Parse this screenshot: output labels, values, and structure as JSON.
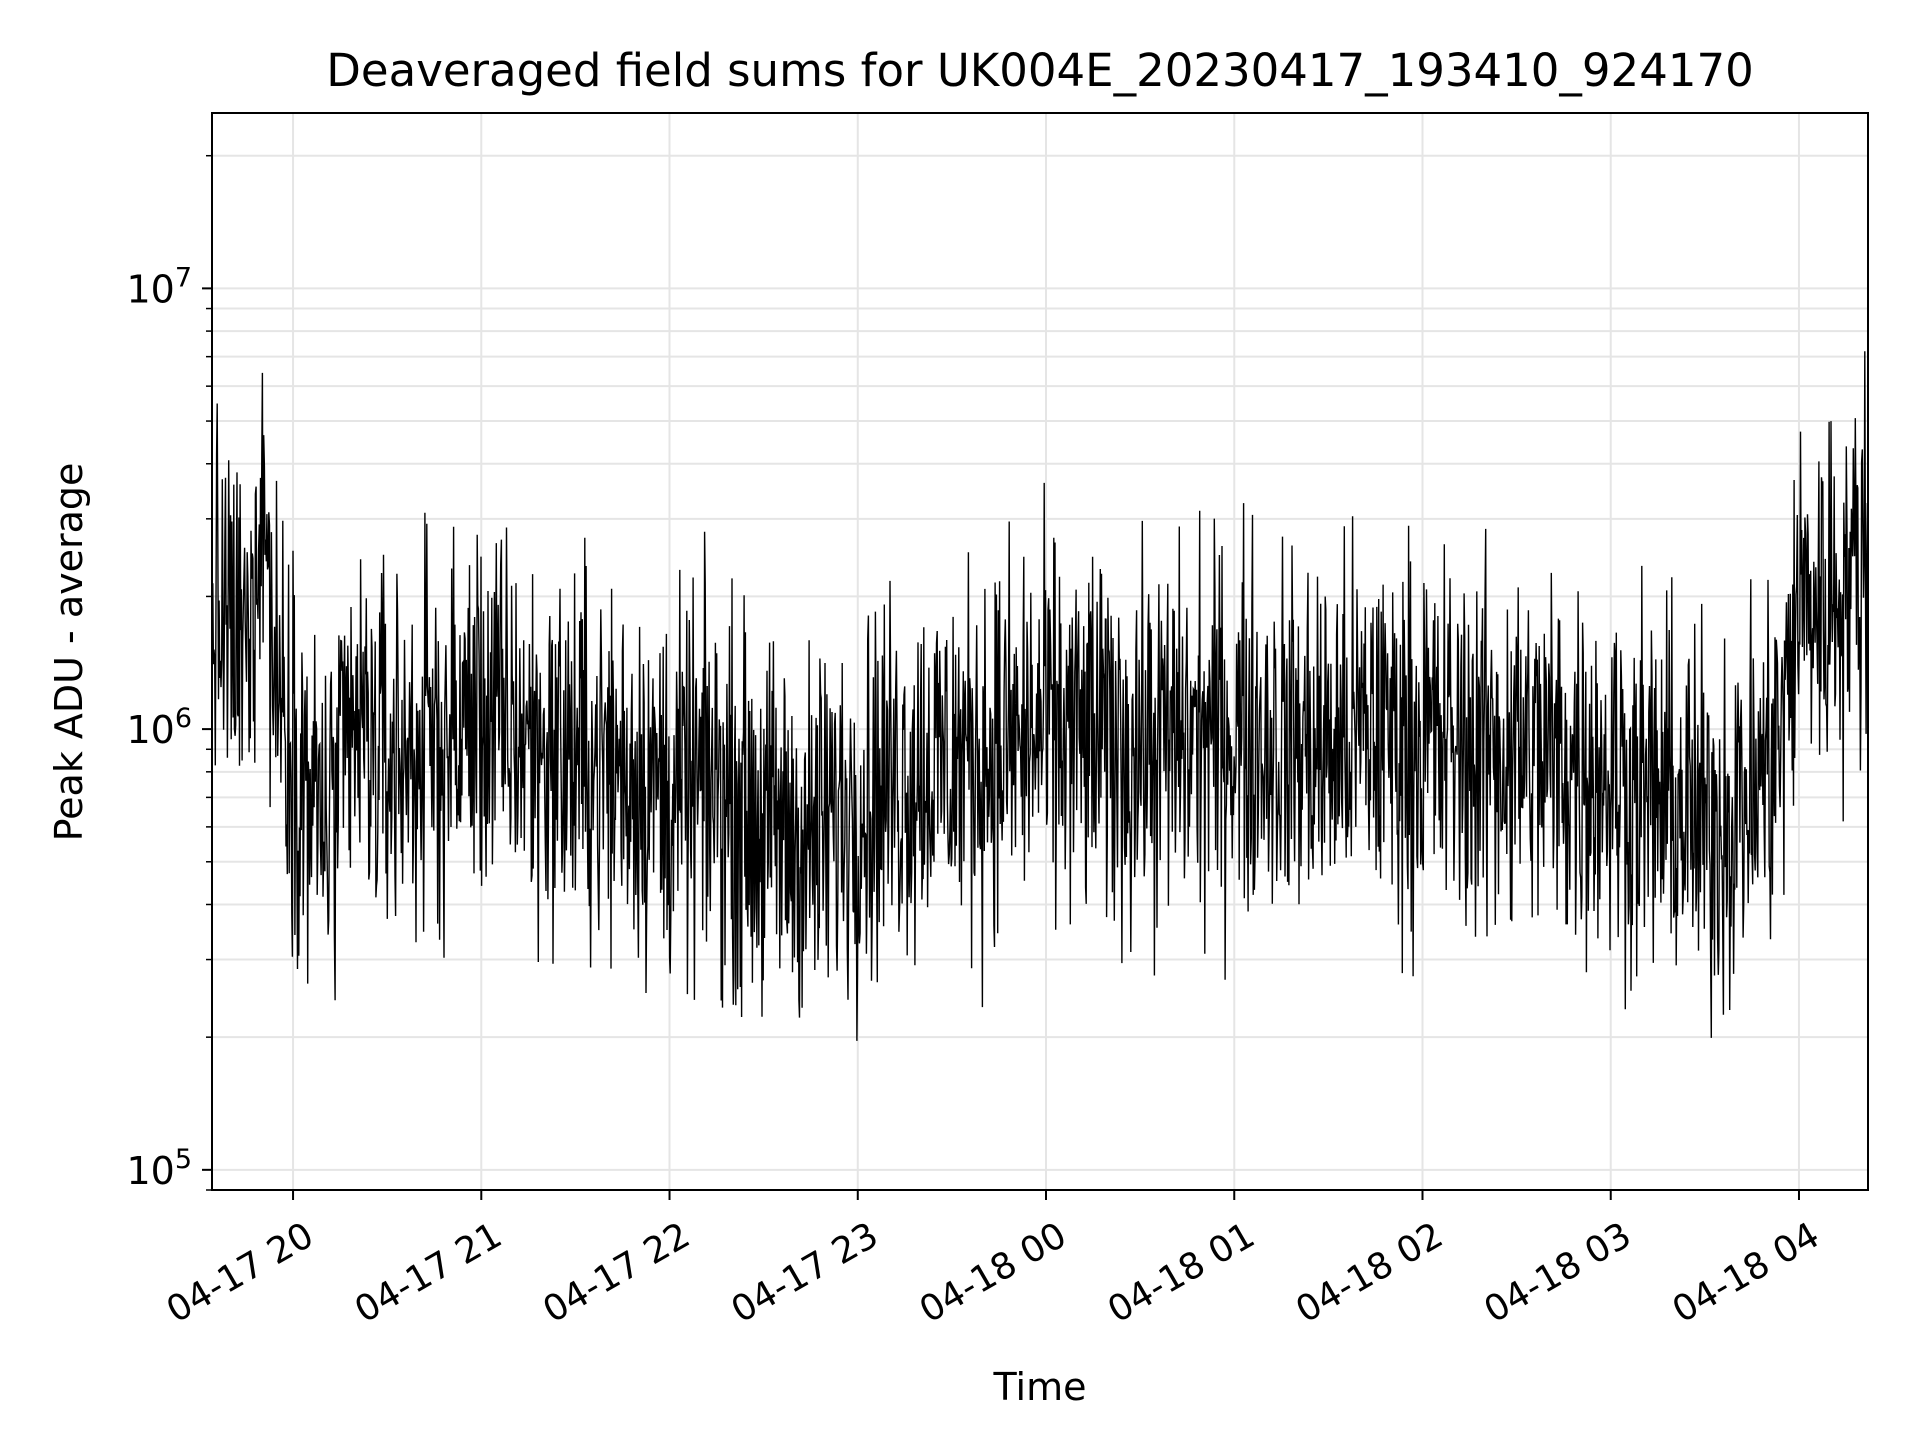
{
  "chart_data": {
    "type": "line",
    "title": "Deaveraged field sums for UK004E_20230417_193410_924170",
    "xlabel": "Time",
    "ylabel": "Peak ADU - average",
    "yscale": "log",
    "ylim": [
      90000,
      25000000
    ],
    "xlim": [
      "2023-04-17 19:34:10",
      "2023-04-18 04:22:00"
    ],
    "grid": true,
    "line_color": "#000000",
    "grid_color": "#e5e5e5",
    "x_ticks": [
      {
        "value": "2023-04-17 20:00",
        "label": "04-17 20"
      },
      {
        "value": "2023-04-17 21:00",
        "label": "04-17 21"
      },
      {
        "value": "2023-04-17 22:00",
        "label": "04-17 22"
      },
      {
        "value": "2023-04-17 23:00",
        "label": "04-17 23"
      },
      {
        "value": "2023-04-18 00:00",
        "label": "04-18 00"
      },
      {
        "value": "2023-04-18 01:00",
        "label": "04-18 01"
      },
      {
        "value": "2023-04-18 02:00",
        "label": "04-18 02"
      },
      {
        "value": "2023-04-18 03:00",
        "label": "04-18 03"
      },
      {
        "value": "2023-04-18 04:00",
        "label": "04-18 04"
      }
    ],
    "y_ticks": [
      {
        "value": 100000,
        "base": "10",
        "exp": "5"
      },
      {
        "value": 1000000,
        "base": "10",
        "exp": "6"
      },
      {
        "value": 10000000,
        "base": "10",
        "exp": "7"
      }
    ],
    "series": [
      {
        "x": [
          "2023-04-17 19:34",
          "2023-04-17 19:40",
          "2023-04-17 19:46",
          "2023-04-17 19:50",
          "2023-04-17 19:54",
          "2023-04-17 19:58",
          "2023-04-17 20:05",
          "2023-04-17 20:12",
          "2023-04-17 20:20",
          "2023-04-17 20:30",
          "2023-04-17 20:40",
          "2023-04-17 20:50",
          "2023-04-17 20:59",
          "2023-04-17 21:10",
          "2023-04-17 21:20",
          "2023-04-17 21:35",
          "2023-04-17 21:50",
          "2023-04-17 22:00",
          "2023-04-17 22:15",
          "2023-04-17 22:30",
          "2023-04-17 22:45",
          "2023-04-17 23:00",
          "2023-04-17 23:15",
          "2023-04-17 23:30",
          "2023-04-17 23:45",
          "2023-04-18 00:00",
          "2023-04-18 00:15",
          "2023-04-18 00:30",
          "2023-04-18 00:45",
          "2023-04-18 01:00",
          "2023-04-18 01:15",
          "2023-04-18 01:30",
          "2023-04-18 01:45",
          "2023-04-18 02:00",
          "2023-04-18 02:15",
          "2023-04-18 02:30",
          "2023-04-18 02:45",
          "2023-04-18 03:00",
          "2023-04-18 03:15",
          "2023-04-18 03:30",
          "2023-04-18 03:45",
          "2023-04-18 03:55",
          "2023-04-18 04:00",
          "2023-04-18 04:08",
          "2023-04-18 04:15",
          "2023-04-18 04:22"
        ],
        "y": [
          1900000,
          1600000,
          1500000,
          4000000,
          1400000,
          1100000,
          700000,
          600000,
          1000000,
          850000,
          900000,
          950000,
          1100000,
          1000000,
          900000,
          850000,
          800000,
          700000,
          750000,
          600000,
          550000,
          700000,
          800000,
          850000,
          900000,
          1000000,
          950000,
          900000,
          950000,
          1000000,
          950000,
          900000,
          1000000,
          950000,
          900000,
          900000,
          850000,
          800000,
          700000,
          600000,
          700000,
          1000000,
          2000000,
          1900000,
          2200000,
          2500000
        ]
      }
    ]
  }
}
